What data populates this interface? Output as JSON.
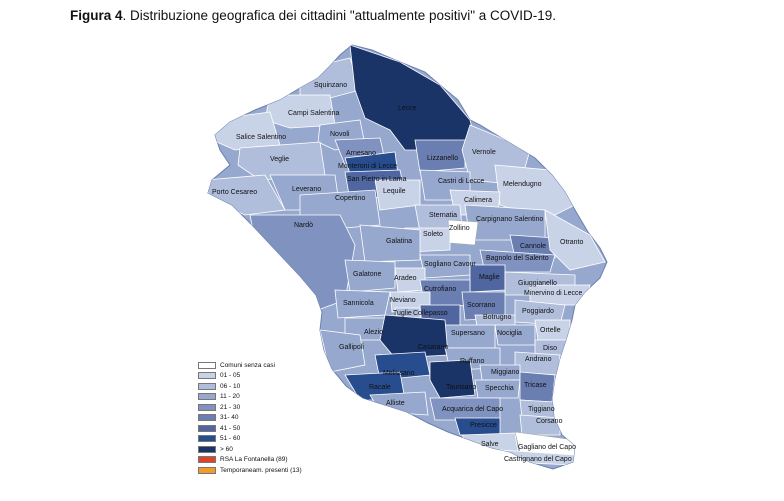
{
  "caption": {
    "figure_label": "Figura 4",
    "text": ". Distribuzione  geografica dei cittadini \"attualmente positivi\" a COVID-19."
  },
  "legend": [
    {
      "label": "Comuni senza casi",
      "color": "#ffffff"
    },
    {
      "label": "01 - 05",
      "color": "#c9d3e8"
    },
    {
      "label": "06 - 10",
      "color": "#b0bedb"
    },
    {
      "label": "11 - 20",
      "color": "#97a8ce"
    },
    {
      "label": "21 - 30",
      "color": "#7f92c0"
    },
    {
      "label": "31- 40",
      "color": "#6a7eb2"
    },
    {
      "label": "41 - 50",
      "color": "#4f66a0"
    },
    {
      "label": "51 - 60",
      "color": "#284d8f"
    },
    {
      "label": "> 60",
      "color": "#1a3468"
    },
    {
      "label": "RSA La Fontanella (89)",
      "color": "#e0432b"
    },
    {
      "label": "Temporaneam. presenti (13)",
      "color": "#f39a2a"
    }
  ],
  "municipalities": [
    "Squinzano",
    "Campi Salentina",
    "Lecce",
    "Salice Salentino",
    "Novoli",
    "Veglie",
    "Arnesano",
    "Monteroni di Lecce",
    "Lizzanello",
    "Vernole",
    "San Pietro in Lama",
    "Castri di Lecce",
    "Melendugno",
    "Porto Cesareo",
    "Leverano",
    "Copertino",
    "Lequile",
    "Calimera",
    "Sternatia",
    "Carpignano Salentino",
    "Nardò",
    "Zollino",
    "Soleto",
    "Galatina",
    "Cannole",
    "Otranto",
    "Bagnolo del Salento",
    "Sogliano Cavour",
    "Galatone",
    "Aradeo",
    "Maglie",
    "Cutrofiano",
    "Giuggianello",
    "Minervino di Lecce",
    "Sannicola",
    "Neviano",
    "Tuglie",
    "Collepasso",
    "Scorrano",
    "Poggiardo",
    "Botrugno",
    "Alezio",
    "Supersano",
    "Nociglia",
    "Ortelle",
    "Gallipoli",
    "Casarano",
    "Diso",
    "Ruffano",
    "Andrano",
    "Melissano",
    "Miggiano",
    "Racale",
    "Taurisano",
    "Specchia",
    "Tricase",
    "Alliste",
    "Acquarica del Capo",
    "Tiggiano",
    "Presicce",
    "Corsano",
    "Salve",
    "Gagliano del Capo",
    "Castrignano del Capo"
  ]
}
